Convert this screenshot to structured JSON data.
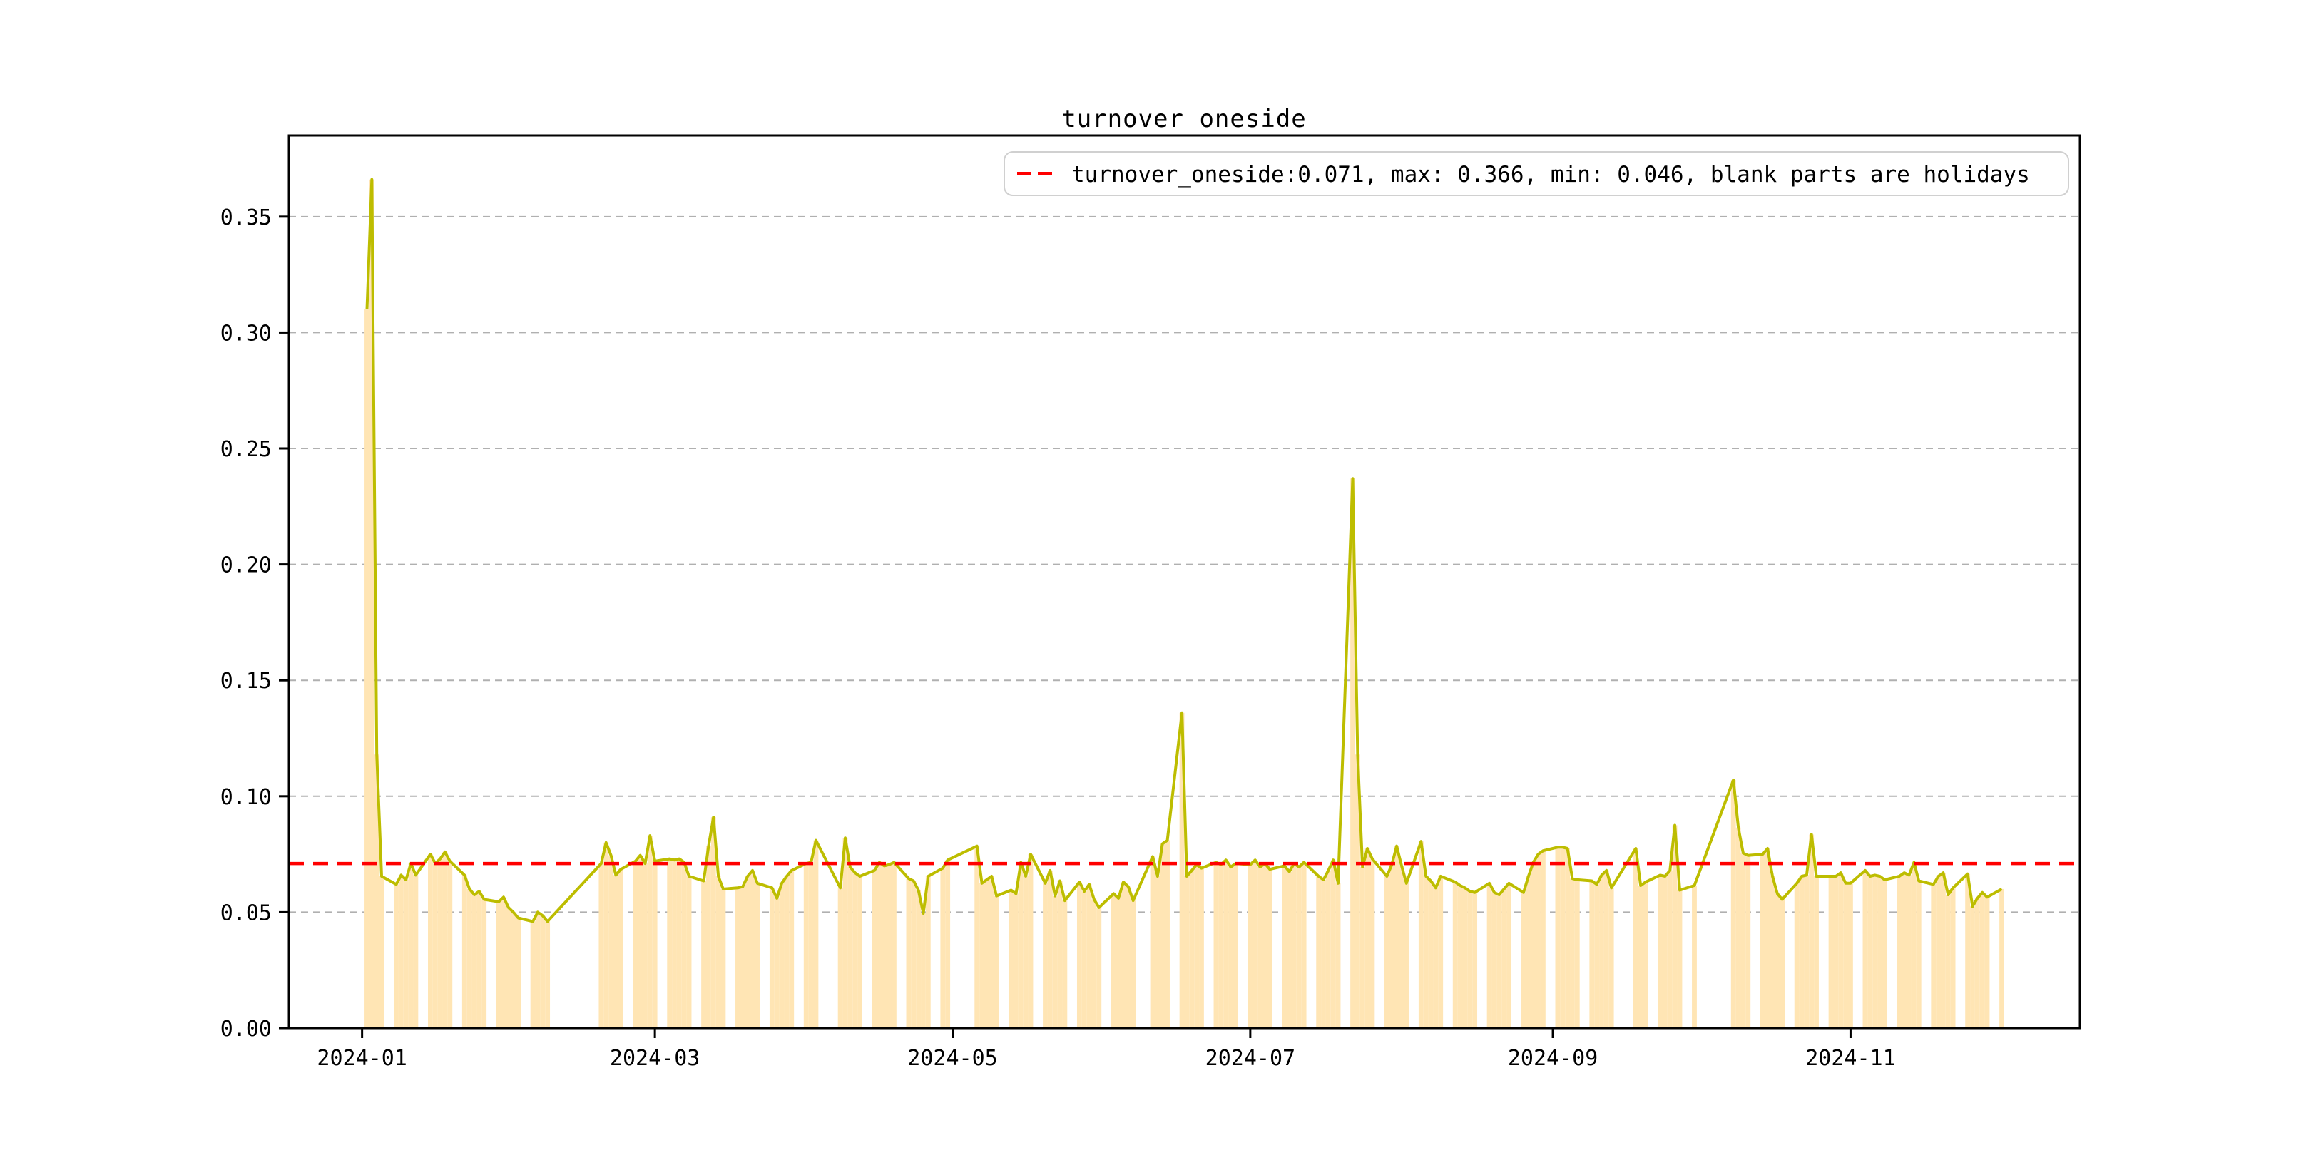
{
  "figure": {
    "title": "turnover oneside"
  },
  "legend": {
    "label": "turnover_oneside:0.071, max: 0.366, min: 0.046, blank parts are holidays"
  },
  "axes": {
    "y_tick_labels": [
      "0.00",
      "0.05",
      "0.10",
      "0.15",
      "0.20",
      "0.25",
      "0.30",
      "0.35"
    ],
    "x_tick_labels": [
      "2024-01",
      "2024-03",
      "2024-05",
      "2024-07",
      "2024-09",
      "2024-11"
    ]
  },
  "chart_data": {
    "type": "line",
    "title": "turnover oneside",
    "series_name": "turnover_oneside",
    "average": 0.071,
    "max": 0.366,
    "min": 0.046,
    "annotation": "blank parts are holidays",
    "ylim": [
      0,
      0.385
    ],
    "xlim": [
      "2023-12-17",
      "2024-12-18"
    ],
    "grid": true,
    "legend_position": "upper right",
    "y_ticks": [
      0.0,
      0.05,
      0.1,
      0.15,
      0.2,
      0.25,
      0.3,
      0.35
    ],
    "x_ticks": [
      {
        "date": "2024-01-01",
        "label": "2024-01"
      },
      {
        "date": "2024-03-01",
        "label": "2024-03"
      },
      {
        "date": "2024-05-01",
        "label": "2024-05"
      },
      {
        "date": "2024-07-01",
        "label": "2024-07"
      },
      {
        "date": "2024-09-01",
        "label": "2024-09"
      },
      {
        "date": "2024-11-01",
        "label": "2024-11"
      }
    ],
    "colors": {
      "line": "#bdbd00",
      "holiday_fill": "#ffe5b4",
      "average_line": "#ff0000",
      "grid": "#b0b0b0",
      "spine": "#000000"
    },
    "dates": [
      "2024-01-02",
      "2024-01-03",
      "2024-01-04",
      "2024-01-05",
      "2024-01-08",
      "2024-01-09",
      "2024-01-10",
      "2024-01-11",
      "2024-01-12",
      "2024-01-15",
      "2024-01-16",
      "2024-01-17",
      "2024-01-18",
      "2024-01-19",
      "2024-01-22",
      "2024-01-23",
      "2024-01-24",
      "2024-01-25",
      "2024-01-26",
      "2024-01-29",
      "2024-01-30",
      "2024-01-31",
      "2024-02-01",
      "2024-02-02",
      "2024-02-05",
      "2024-02-06",
      "2024-02-07",
      "2024-02-08",
      "2024-02-19",
      "2024-02-20",
      "2024-02-21",
      "2024-02-22",
      "2024-02-23",
      "2024-02-26",
      "2024-02-27",
      "2024-02-28",
      "2024-02-29",
      "2024-03-01",
      "2024-03-04",
      "2024-03-05",
      "2024-03-06",
      "2024-03-07",
      "2024-03-08",
      "2024-03-11",
      "2024-03-12",
      "2024-03-13",
      "2024-03-14",
      "2024-03-15",
      "2024-03-18",
      "2024-03-19",
      "2024-03-20",
      "2024-03-21",
      "2024-03-22",
      "2024-03-25",
      "2024-03-26",
      "2024-03-27",
      "2024-03-28",
      "2024-03-29",
      "2024-04-01",
      "2024-04-02",
      "2024-04-03",
      "2024-04-08",
      "2024-04-09",
      "2024-04-10",
      "2024-04-11",
      "2024-04-12",
      "2024-04-15",
      "2024-04-16",
      "2024-04-17",
      "2024-04-18",
      "2024-04-19",
      "2024-04-22",
      "2024-04-23",
      "2024-04-24",
      "2024-04-25",
      "2024-04-26",
      "2024-04-29",
      "2024-04-30",
      "2024-05-06",
      "2024-05-07",
      "2024-05-08",
      "2024-05-09",
      "2024-05-10",
      "2024-05-13",
      "2024-05-14",
      "2024-05-15",
      "2024-05-16",
      "2024-05-17",
      "2024-05-20",
      "2024-05-21",
      "2024-05-22",
      "2024-05-23",
      "2024-05-24",
      "2024-05-27",
      "2024-05-28",
      "2024-05-29",
      "2024-05-30",
      "2024-05-31",
      "2024-06-03",
      "2024-06-04",
      "2024-06-05",
      "2024-06-06",
      "2024-06-07",
      "2024-06-11",
      "2024-06-12",
      "2024-06-13",
      "2024-06-14",
      "2024-06-17",
      "2024-06-18",
      "2024-06-19",
      "2024-06-20",
      "2024-06-21",
      "2024-06-24",
      "2024-06-25",
      "2024-06-26",
      "2024-06-27",
      "2024-06-28",
      "2024-07-01",
      "2024-07-02",
      "2024-07-03",
      "2024-07-04",
      "2024-07-05",
      "2024-07-08",
      "2024-07-09",
      "2024-07-10",
      "2024-07-11",
      "2024-07-12",
      "2024-07-15",
      "2024-07-16",
      "2024-07-17",
      "2024-07-18",
      "2024-07-19",
      "2024-07-22",
      "2024-07-23",
      "2024-07-24",
      "2024-07-25",
      "2024-07-26",
      "2024-07-29",
      "2024-07-30",
      "2024-07-31",
      "2024-08-01",
      "2024-08-02",
      "2024-08-05",
      "2024-08-06",
      "2024-08-07",
      "2024-08-08",
      "2024-08-09",
      "2024-08-12",
      "2024-08-13",
      "2024-08-14",
      "2024-08-15",
      "2024-08-16",
      "2024-08-19",
      "2024-08-20",
      "2024-08-21",
      "2024-08-22",
      "2024-08-23",
      "2024-08-26",
      "2024-08-27",
      "2024-08-28",
      "2024-08-29",
      "2024-08-30",
      "2024-09-02",
      "2024-09-03",
      "2024-09-04",
      "2024-09-05",
      "2024-09-06",
      "2024-09-09",
      "2024-09-10",
      "2024-09-11",
      "2024-09-12",
      "2024-09-13",
      "2024-09-18",
      "2024-09-19",
      "2024-09-20",
      "2024-09-23",
      "2024-09-24",
      "2024-09-25",
      "2024-09-26",
      "2024-09-27",
      "2024-09-30",
      "2024-10-08",
      "2024-10-09",
      "2024-10-10",
      "2024-10-11",
      "2024-10-14",
      "2024-10-15",
      "2024-10-16",
      "2024-10-17",
      "2024-10-18",
      "2024-10-21",
      "2024-10-22",
      "2024-10-23",
      "2024-10-24",
      "2024-10-25",
      "2024-10-28",
      "2024-10-29",
      "2024-10-30",
      "2024-10-31",
      "2024-11-01",
      "2024-11-04",
      "2024-11-05",
      "2024-11-06",
      "2024-11-07",
      "2024-11-08",
      "2024-11-11",
      "2024-11-12",
      "2024-11-13",
      "2024-11-14",
      "2024-11-15",
      "2024-11-18",
      "2024-11-19",
      "2024-11-20",
      "2024-11-21",
      "2024-11-22",
      "2024-11-25",
      "2024-11-26",
      "2024-11-27",
      "2024-11-28",
      "2024-11-29",
      "2024-12-02"
    ],
    "values": [
      0.31,
      0.366,
      0.118,
      0.0655,
      0.062,
      0.066,
      0.064,
      0.071,
      0.066,
      0.075,
      0.071,
      0.073,
      0.076,
      0.072,
      0.066,
      0.06,
      0.0575,
      0.059,
      0.0555,
      0.0545,
      0.0565,
      0.052,
      0.05,
      0.0475,
      0.046,
      0.05,
      0.0485,
      0.046,
      0.071,
      0.08,
      0.0745,
      0.066,
      0.0685,
      0.072,
      0.0745,
      0.071,
      0.083,
      0.072,
      0.073,
      0.0725,
      0.073,
      0.0715,
      0.0655,
      0.0635,
      0.0785,
      0.091,
      0.0655,
      0.06,
      0.0605,
      0.061,
      0.0655,
      0.068,
      0.0625,
      0.0605,
      0.056,
      0.0625,
      0.0655,
      0.068,
      0.071,
      0.0715,
      0.081,
      0.0605,
      0.082,
      0.0695,
      0.067,
      0.0655,
      0.068,
      0.0715,
      0.07,
      0.0705,
      0.0715,
      0.0645,
      0.0635,
      0.0595,
      0.0495,
      0.0655,
      0.069,
      0.0725,
      0.0785,
      0.0625,
      0.064,
      0.0655,
      0.057,
      0.0595,
      0.058,
      0.0715,
      0.0655,
      0.075,
      0.0625,
      0.068,
      0.057,
      0.0635,
      0.055,
      0.063,
      0.059,
      0.062,
      0.0555,
      0.052,
      0.058,
      0.056,
      0.063,
      0.061,
      0.055,
      0.074,
      0.0655,
      0.0795,
      0.081,
      0.136,
      0.0655,
      0.068,
      0.0705,
      0.069,
      0.0715,
      0.0705,
      0.0725,
      0.0695,
      0.071,
      0.0705,
      0.0725,
      0.0695,
      0.071,
      0.0685,
      0.07,
      0.0675,
      0.071,
      0.0695,
      0.0715,
      0.0655,
      0.064,
      0.068,
      0.0725,
      0.0625,
      0.237,
      0.118,
      0.0695,
      0.0775,
      0.073,
      0.0655,
      0.0705,
      0.0785,
      0.07,
      0.0625,
      0.0805,
      0.0655,
      0.0635,
      0.0605,
      0.0655,
      0.063,
      0.0615,
      0.0605,
      0.059,
      0.0585,
      0.0625,
      0.0585,
      0.0575,
      0.06,
      0.0625,
      0.0585,
      0.0655,
      0.0715,
      0.075,
      0.0765,
      0.078,
      0.078,
      0.0775,
      0.0645,
      0.064,
      0.0635,
      0.062,
      0.066,
      0.068,
      0.0605,
      0.0775,
      0.0615,
      0.063,
      0.066,
      0.0655,
      0.068,
      0.0875,
      0.0595,
      0.0615,
      0.107,
      0.0865,
      0.0755,
      0.0745,
      0.075,
      0.0775,
      0.0655,
      0.058,
      0.0555,
      0.0625,
      0.0655,
      0.066,
      0.0835,
      0.0655,
      0.0655,
      0.0655,
      0.067,
      0.0625,
      0.0625,
      0.068,
      0.0655,
      0.066,
      0.0655,
      0.064,
      0.0655,
      0.067,
      0.066,
      0.0715,
      0.0635,
      0.062,
      0.0655,
      0.067,
      0.0575,
      0.0605,
      0.0665,
      0.0525,
      0.056,
      0.0585,
      0.0565,
      0.06
    ]
  }
}
